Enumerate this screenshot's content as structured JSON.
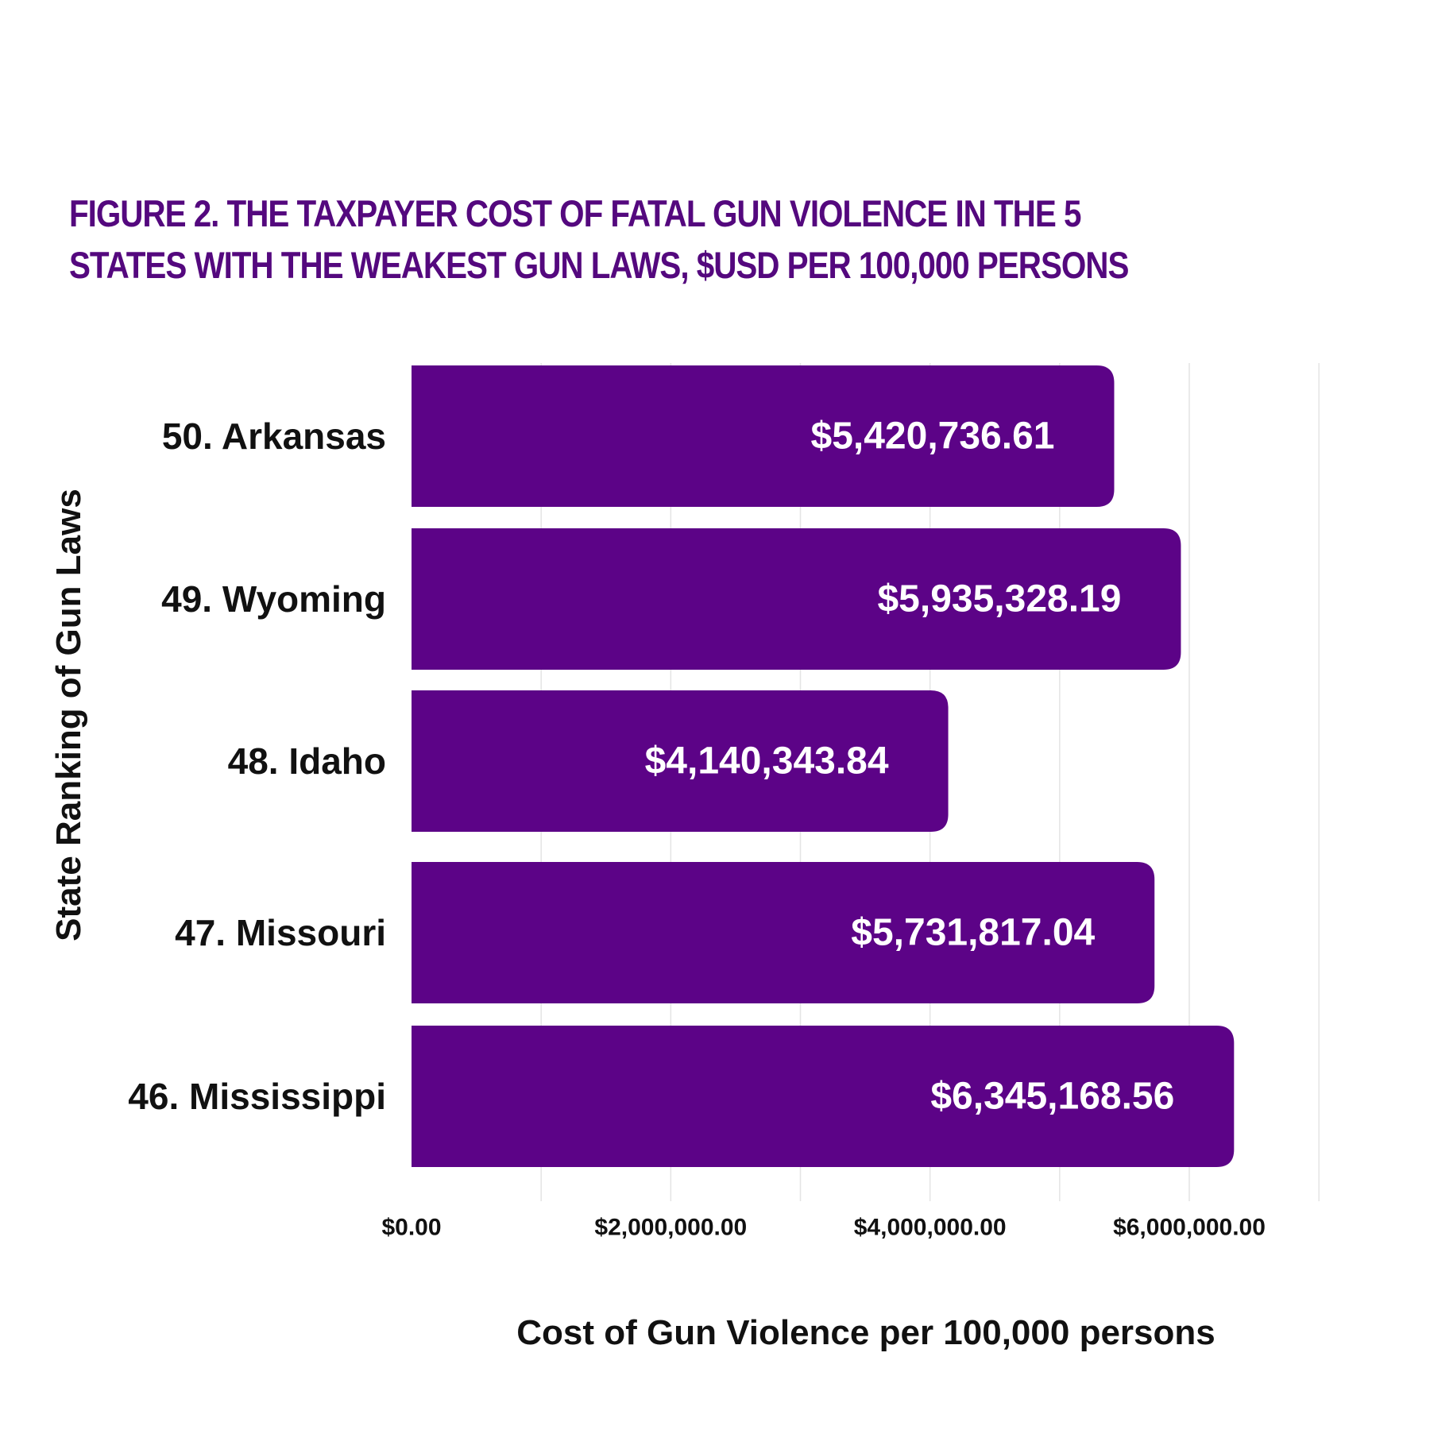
{
  "chart_data": {
    "type": "bar",
    "orientation": "horizontal",
    "title": "FIGURE 2. THE TAXPAYER COST OF FATAL GUN VIOLENCE IN THE 5 STATES WITH THE WEAKEST GUN LAWS, $USD PER 100,000 PERSONS",
    "xlabel": "Cost of Gun Violence per 100,000 persons",
    "ylabel": "State Ranking of Gun Laws",
    "categories": [
      "50. Arkansas",
      "49. Wyoming",
      "48. Idaho",
      "47. Missouri",
      "46. Mississippi"
    ],
    "values": [
      5420736.61,
      5935328.19,
      4140343.84,
      5731817.04,
      6345168.56
    ],
    "value_labels": [
      "$5,420,736.61",
      "$5,935,328.19",
      "$4,140,343.84",
      "$5,731,817.04",
      "$6,345,168.56"
    ],
    "xlim": [
      0,
      7000000
    ],
    "ticks": [
      0,
      2000000,
      4000000,
      6000000
    ],
    "tick_labels": [
      "$0.00",
      "$2,000,000.00",
      "$4,000,000.00",
      "$6,000,000.00"
    ],
    "grid": true,
    "bar_color": "#5c0387",
    "title_color": "#54087e"
  }
}
